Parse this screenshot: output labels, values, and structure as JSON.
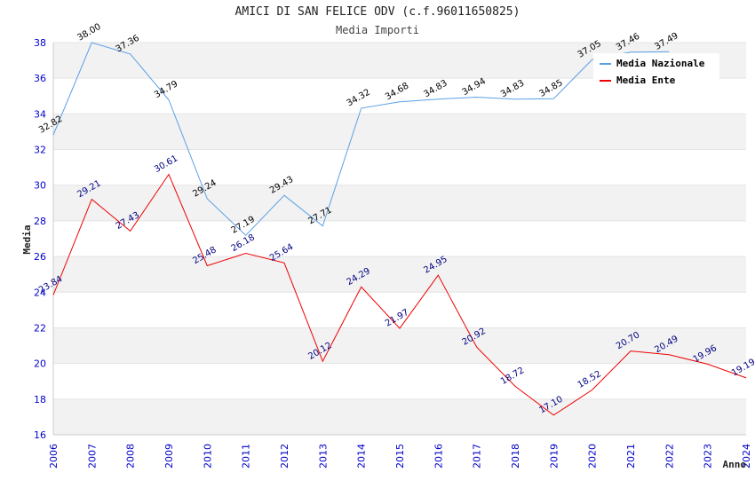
{
  "title": "AMICI DI SAN FELICE ODV (c.f.96011650825)",
  "subtitle": "Media Importi",
  "chart_data": {
    "type": "line",
    "ylabel": "Media",
    "xlabel": "Anno",
    "ylim": [
      16,
      38
    ],
    "yticks": [
      16,
      18,
      20,
      22,
      24,
      26,
      28,
      30,
      32,
      34,
      36,
      38
    ],
    "x": [
      "2006",
      "2007",
      "2008",
      "2009",
      "2010",
      "2011",
      "2012",
      "2013",
      "2014",
      "2015",
      "2016",
      "2017",
      "2018",
      "2019",
      "2020",
      "2021",
      "2022",
      "2023",
      "2024"
    ],
    "grid": "horizontal bands",
    "legend_position": "top-right",
    "series": [
      {
        "name": "Media Nazionale",
        "color": "#5aa0e6",
        "label_color": "#000000",
        "values": [
          32.82,
          38.0,
          37.36,
          34.79,
          29.24,
          27.19,
          29.43,
          27.71,
          34.32,
          34.68,
          34.83,
          34.94,
          34.83,
          34.85,
          37.05,
          37.46,
          37.49,
          null,
          null
        ],
        "labels": [
          "32.82",
          "38.00",
          "37.36",
          "34.79",
          "29.24",
          "27.19",
          "29.43",
          "27.71",
          "34.32",
          "34.68",
          "34.83",
          "34.94",
          "34.83",
          "34.85",
          "37.05",
          "37.46",
          "37.49",
          "",
          ""
        ]
      },
      {
        "name": "Media Ente",
        "color": "#ee0000",
        "label_color": "#000080",
        "values": [
          23.84,
          29.21,
          27.43,
          30.61,
          25.48,
          26.18,
          25.64,
          20.12,
          24.29,
          21.97,
          24.95,
          20.92,
          18.72,
          17.1,
          18.52,
          20.7,
          20.49,
          19.96,
          19.19
        ],
        "labels": [
          "23.84",
          "29.21",
          "27.43",
          "30.61",
          "25.48",
          "26.18",
          "25.64",
          "20.12",
          "24.29",
          "21.97",
          "24.95",
          "20.92",
          "18.72",
          "17.10",
          "18.52",
          "20.70",
          "20.49",
          "19.96",
          "19.19"
        ]
      }
    ]
  }
}
